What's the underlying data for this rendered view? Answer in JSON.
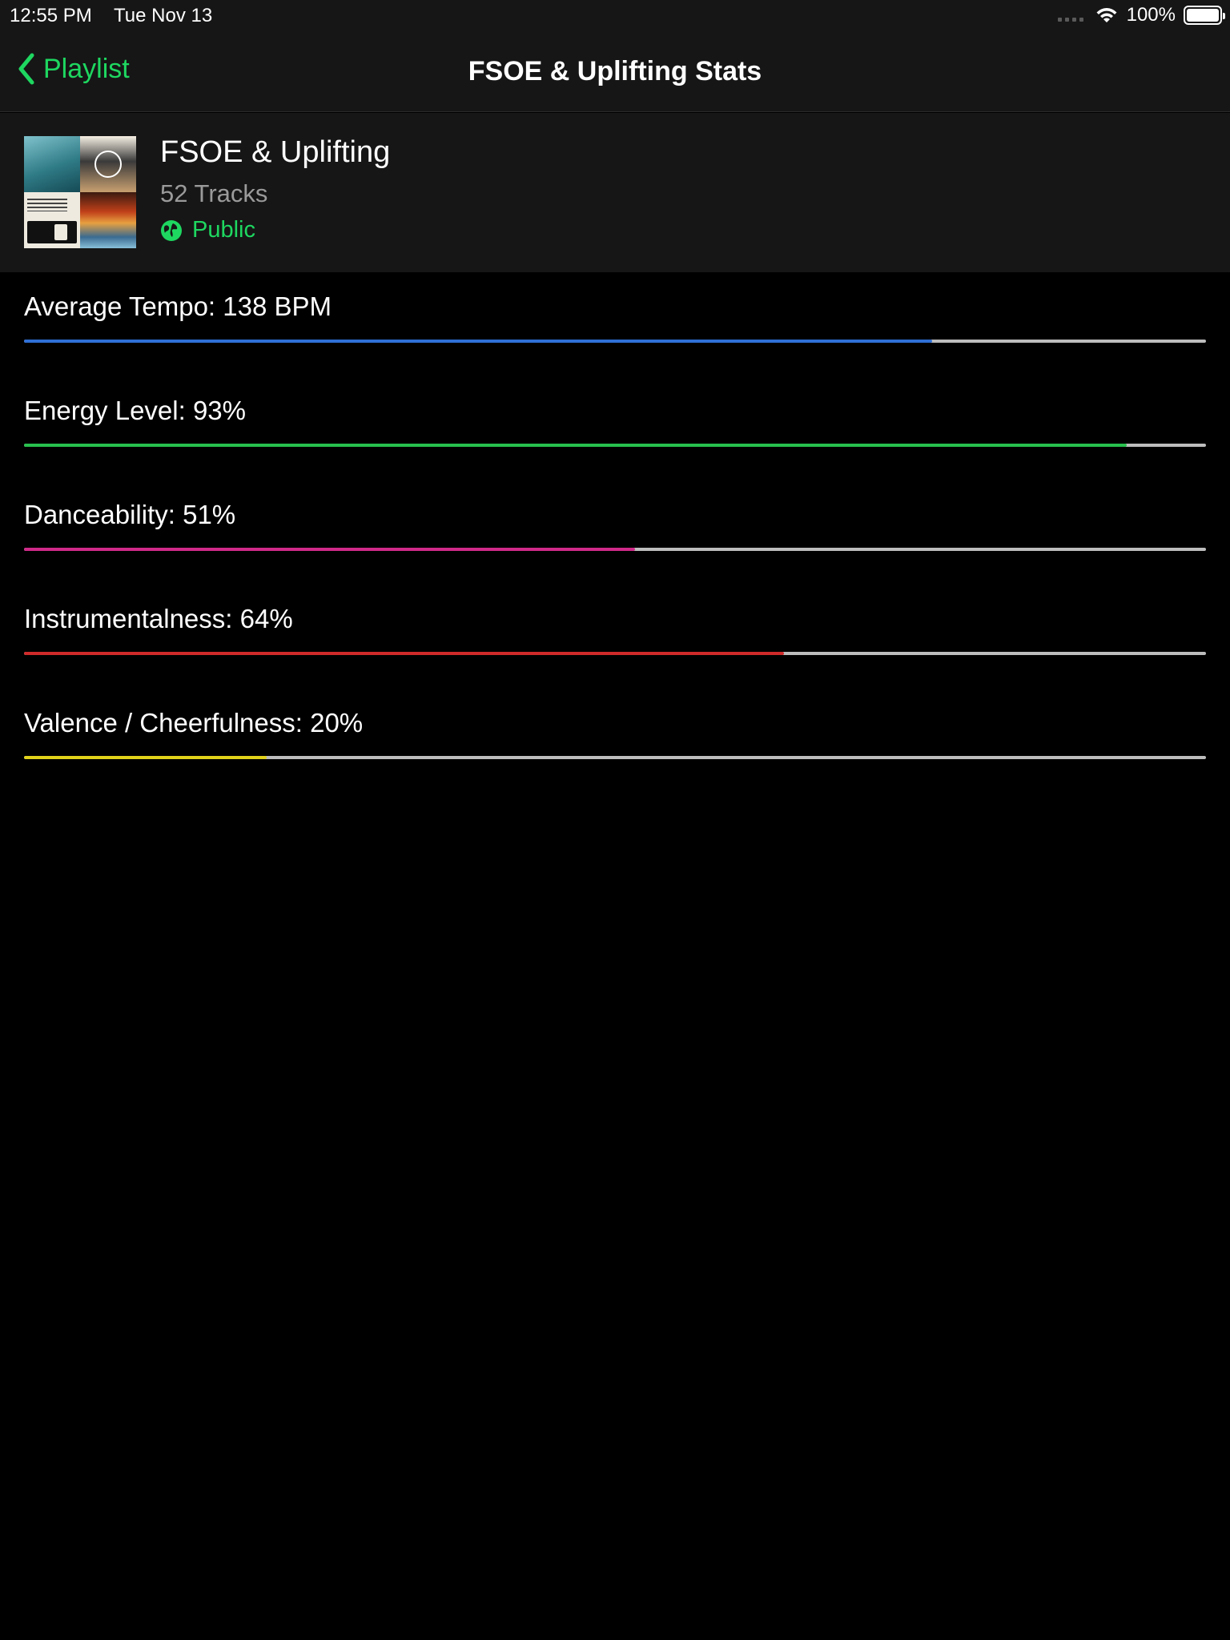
{
  "status_bar": {
    "time": "12:55 PM",
    "date": "Tue Nov 13",
    "battery": "100%"
  },
  "nav": {
    "back_label": "Playlist",
    "title": "FSOE & Uplifting Stats"
  },
  "playlist": {
    "name": "FSOE & Uplifting",
    "track_count": "52 Tracks",
    "visibility": "Public"
  },
  "stats": [
    {
      "label": "Average Tempo: 138 BPM",
      "fraction": 0.768,
      "color": "#2f6fd6"
    },
    {
      "label": "Energy Level: 93%",
      "fraction": 0.933,
      "color": "#28c04e"
    },
    {
      "label": "Danceability: 51%",
      "fraction": 0.517,
      "color": "#d02a8a"
    },
    {
      "label": "Instrumentalness: 64%",
      "fraction": 0.643,
      "color": "#d02a2a"
    },
    {
      "label": "Valence / Cheerfulness: 20%",
      "fraction": 0.205,
      "color": "#e2d21a"
    }
  ],
  "colors": {
    "accent": "#1ed760",
    "background": "#000000",
    "panel": "#161616",
    "track": "#bdbdbd"
  },
  "icons": [
    "wifi-icon",
    "battery-icon",
    "chevron-left-icon",
    "globe-icon",
    "signal-dots-icon"
  ]
}
